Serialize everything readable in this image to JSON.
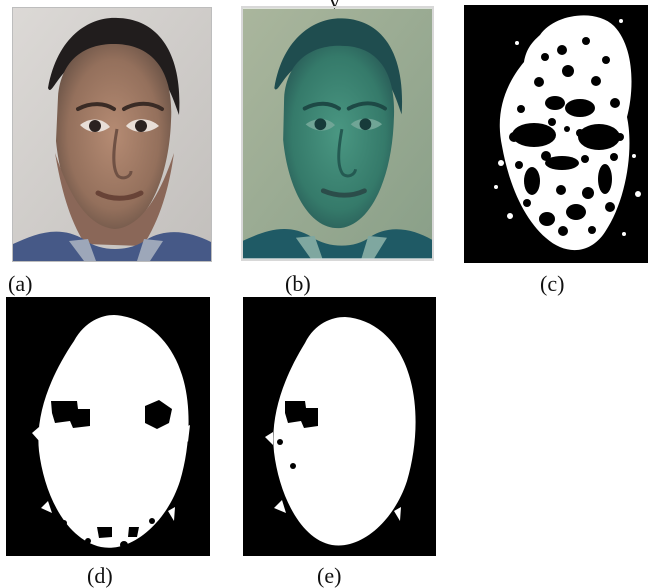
{
  "figure": {
    "top_text_fragment": "y",
    "panels": [
      {
        "label": "(a)",
        "content": "original-face-photo"
      },
      {
        "label": "(b)",
        "content": "color-converted-face"
      },
      {
        "label": "(c)",
        "content": "thresholded-skin-mask"
      },
      {
        "label": "(d)",
        "content": "morphological-cleaned-mask"
      },
      {
        "label": "(e)",
        "content": "filled-face-region"
      }
    ]
  },
  "colors": {
    "photo_background": "#d3d0cd",
    "hair": "#24201f",
    "skin": "#9f765f",
    "shirt": "#4d5f8d",
    "converted_background": "#9fae97",
    "converted_face": "#3e8774",
    "mask_black": "#000000",
    "mask_white": "#ffffff"
  }
}
